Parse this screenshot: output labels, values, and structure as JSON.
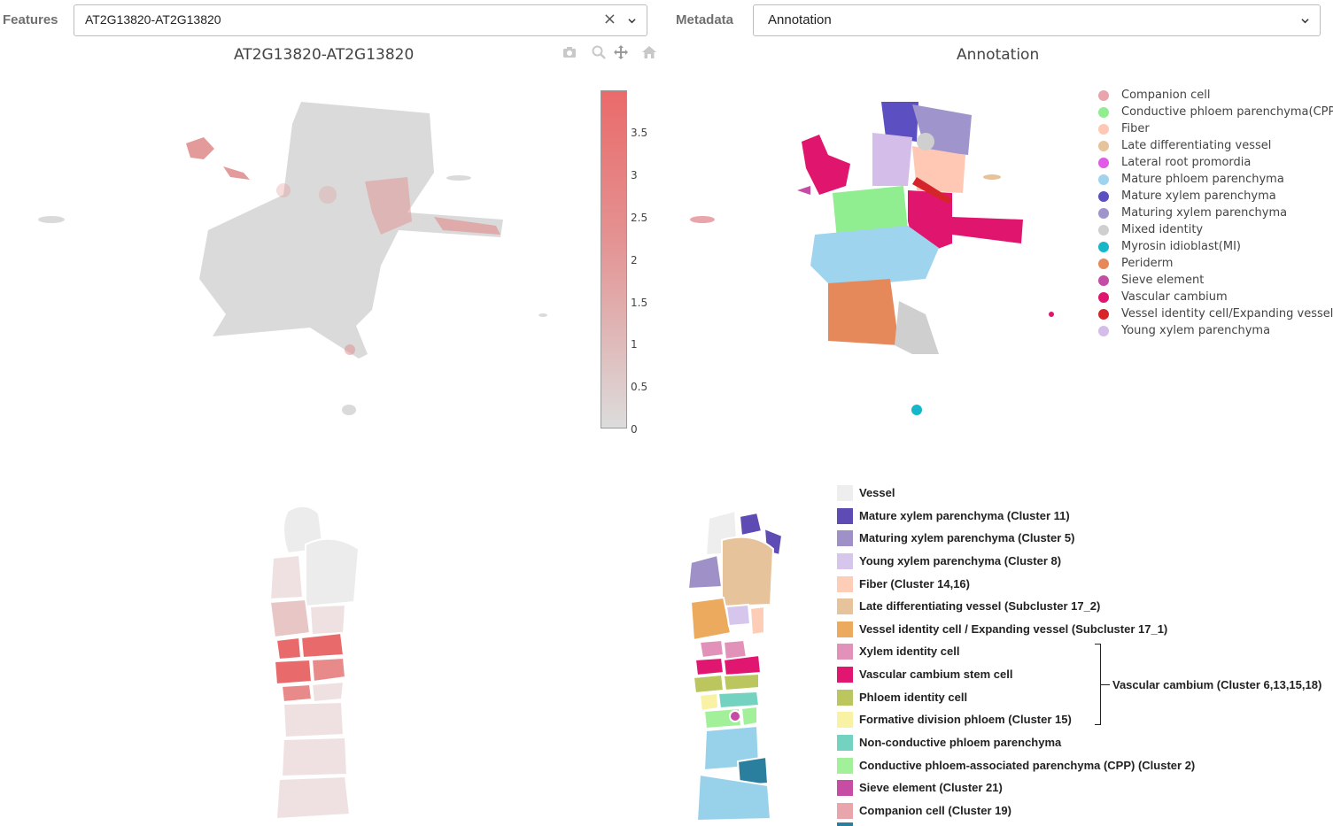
{
  "features": {
    "label": "Features",
    "value": "AT2G13820-AT2G13820",
    "clear_glyph": "×"
  },
  "metadata": {
    "label": "Metadata",
    "value": "Annotation"
  },
  "left_plot": {
    "title": "AT2G13820-AT2G13820",
    "colorbar_ticks": [
      "3.5",
      "3",
      "2.5",
      "2",
      "1.5",
      "1",
      "0.5",
      "0"
    ],
    "colorbar_colors": {
      "high": "#ea6a6a",
      "low": "#dcdcdc"
    }
  },
  "toolbar": {
    "icons": [
      "camera-icon",
      "zoom-icon",
      "pan-icon",
      "home-icon"
    ]
  },
  "right_plot": {
    "title": "Annotation",
    "legend": [
      {
        "label": "Companion cell",
        "color": "#e8a5ab"
      },
      {
        "label": "Conductive phloem parenchyma(CPP)",
        "color": "#90ee90"
      },
      {
        "label": "Fiber",
        "color": "#ffc8b4"
      },
      {
        "label": "Late differentiating vessel",
        "color": "#e6c39a"
      },
      {
        "label": "Lateral root promordia",
        "color": "#e05ce6"
      },
      {
        "label": "Mature phloem parenchyma",
        "color": "#9fd4ee"
      },
      {
        "label": "Mature xylem parenchyma",
        "color": "#5b4fc1"
      },
      {
        "label": "Maturing xylem parenchyma",
        "color": "#9f95cc"
      },
      {
        "label": "Mixed identity",
        "color": "#cfcfcf"
      },
      {
        "label": "Myrosin idioblast(MI)",
        "color": "#16b7c9"
      },
      {
        "label": "Periderm",
        "color": "#e6895a"
      },
      {
        "label": "Sieve element",
        "color": "#c44ca4"
      },
      {
        "label": "Vascular cambium",
        "color": "#e0166e"
      },
      {
        "label": "Vessel identity cell/Expanding vessel",
        "color": "#d6252a"
      },
      {
        "label": "Young xylem parenchyma",
        "color": "#d4bde8"
      }
    ]
  },
  "bottom_legend": {
    "items": [
      {
        "label": "Vessel",
        "color": "#eeeeee"
      },
      {
        "label": "Mature xylem parenchyma (Cluster 11)",
        "color": "#5e4bb4"
      },
      {
        "label": "Maturing xylem parenchyma (Cluster 5)",
        "color": "#9f90c8"
      },
      {
        "label": "Young xylem parenchyma (Cluster 8)",
        "color": "#d6c6ec"
      },
      {
        "label": "Fiber (Cluster 14,16)",
        "color": "#fdcdb8"
      },
      {
        "label": "Late differentiating vessel (Subcluster 17_2)",
        "color": "#e6c39b"
      },
      {
        "label": "Vessel identity cell / Expanding vessel (Subcluster 17_1)",
        "color": "#ebaa5e"
      },
      {
        "label": "Xylem identity cell",
        "color": "#e292b8"
      },
      {
        "label": "Vascular cambium stem cell",
        "color": "#e11671"
      },
      {
        "label": "Phloem identity cell",
        "color": "#bcc65e"
      },
      {
        "label": "Formative division phloem (Cluster 15)",
        "color": "#f9f1a4"
      },
      {
        "label": "Non-conductive phloem parenchyma",
        "color": "#73d2c0"
      },
      {
        "label": "Conductive phloem-associated parenchyma (CPP) (Cluster 2)",
        "color": "#a3f09b"
      },
      {
        "label": "Sieve element (Cluster 21)",
        "color": "#c64ca4"
      },
      {
        "label": "Companion cell (Cluster 19)",
        "color": "#e8a5ab"
      }
    ],
    "bracket_label": "Vascular cambium (Cluster 6,13,15,18)"
  }
}
